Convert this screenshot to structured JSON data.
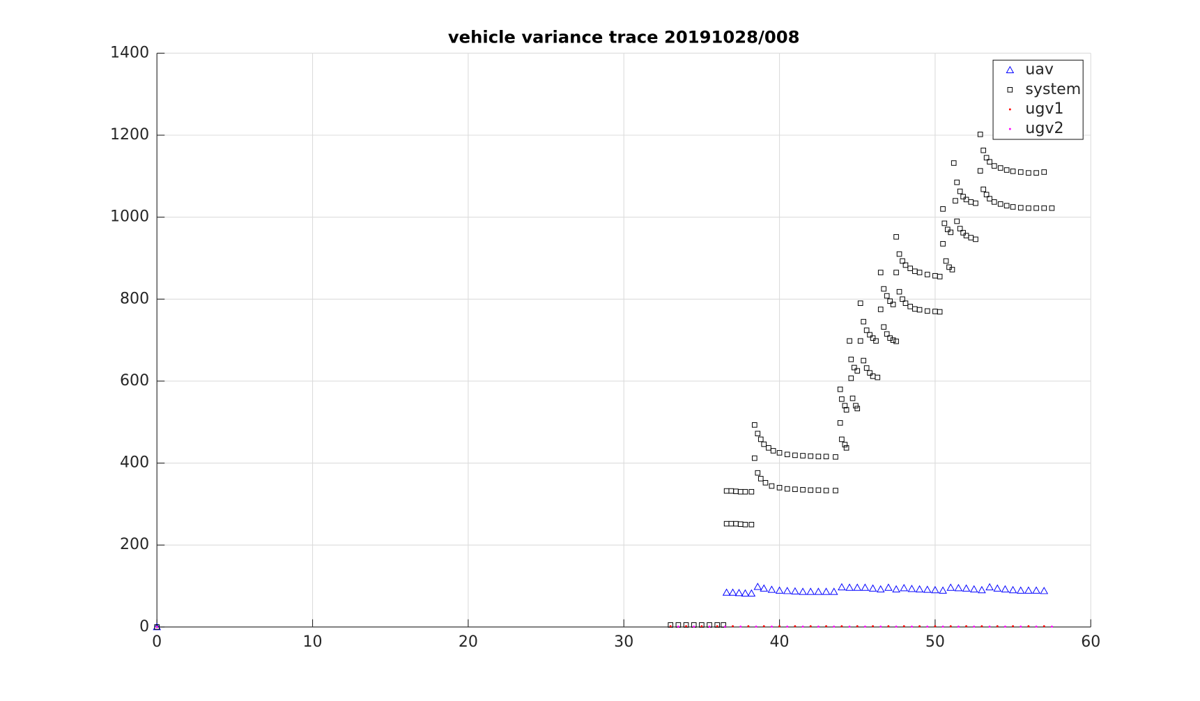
{
  "chart_data": {
    "type": "scatter",
    "title": "vehicle variance trace  20191028/008",
    "xlim": [
      0,
      60
    ],
    "xticks": [
      0,
      10,
      20,
      30,
      40,
      50,
      60
    ],
    "ylim": [
      0,
      1400
    ],
    "yticks": [
      0,
      200,
      400,
      600,
      800,
      1000,
      1200,
      1400
    ],
    "grid": true,
    "legend": "top-right",
    "series": [
      {
        "name": "uav",
        "color": "#0000ff",
        "marker": "triangle",
        "x": [
          0,
          36.6,
          37.0,
          37.4,
          37.8,
          38.2,
          38.6,
          39.0,
          39.5,
          40.0,
          40.5,
          41.0,
          41.5,
          42.0,
          42.5,
          43.0,
          43.5,
          44.0,
          44.5,
          45.0,
          45.5,
          46.0,
          46.5,
          47.0,
          47.5,
          48.0,
          48.5,
          49.0,
          49.5,
          50.0,
          50.5,
          51.0,
          51.5,
          52.0,
          52.5,
          53.0,
          53.5,
          54.0,
          54.5,
          55.0,
          55.5,
          56.0,
          56.5,
          57.0
        ],
        "values": [
          0,
          84,
          84,
          83,
          82,
          82,
          98,
          94,
          91,
          89,
          88,
          87,
          86,
          86,
          86,
          86,
          86,
          97,
          96,
          96,
          96,
          94,
          92,
          96,
          92,
          95,
          93,
          92,
          91,
          90,
          89,
          96,
          95,
          94,
          92,
          90,
          97,
          94,
          92,
          90,
          89,
          89,
          89,
          88
        ]
      },
      {
        "name": "system",
        "color": "#000000",
        "marker": "square",
        "x": [
          0,
          33.0,
          33.5,
          34.0,
          34.5,
          35.0,
          35.5,
          36.0,
          36.4,
          36.6,
          36.9,
          37.2,
          37.5,
          37.8,
          38.2,
          36.6,
          36.9,
          37.2,
          37.5,
          37.8,
          38.2,
          38.4,
          38.6,
          38.8,
          39.0,
          39.3,
          39.6,
          40.0,
          40.5,
          41.0,
          41.5,
          42.0,
          42.5,
          43.0,
          43.6,
          38.4,
          38.6,
          38.8,
          39.1,
          39.5,
          40.0,
          40.5,
          41.0,
          41.5,
          42.0,
          42.5,
          43.0,
          43.6,
          43.9,
          44.0,
          44.2,
          44.3,
          43.9,
          44.0,
          44.2,
          44.3,
          44.5,
          44.6,
          44.8,
          45.0,
          44.6,
          44.7,
          44.9,
          45.0,
          45.2,
          45.4,
          45.6,
          45.8,
          46.0,
          46.2,
          45.2,
          45.4,
          45.6,
          45.8,
          46.0,
          46.3,
          46.5,
          46.7,
          46.9,
          47.1,
          47.3,
          46.5,
          46.7,
          46.9,
          47.1,
          47.3,
          47.5,
          47.5,
          47.7,
          47.9,
          48.1,
          48.4,
          48.7,
          49.0,
          49.5,
          50.0,
          50.3,
          47.5,
          47.7,
          47.9,
          48.1,
          48.4,
          48.7,
          49.0,
          49.5,
          50.0,
          50.3,
          50.5,
          50.6,
          50.8,
          51.0,
          50.5,
          50.7,
          50.9,
          51.1,
          51.2,
          51.4,
          51.6,
          51.8,
          52.0,
          52.3,
          52.6,
          51.3,
          51.4,
          51.6,
          51.8,
          52.0,
          52.3,
          52.6,
          52.9,
          53.1,
          53.3,
          53.5,
          53.8,
          54.2,
          54.6,
          55.0,
          55.5,
          56.0,
          56.5,
          57.0,
          52.9,
          53.1,
          53.3,
          53.5,
          53.8,
          54.2,
          54.6,
          55.0,
          55.5,
          56.0,
          56.5,
          57.0,
          57.5
        ],
        "values": [
          0,
          5,
          5,
          5,
          5,
          5,
          5,
          5,
          5,
          252,
          252,
          252,
          251,
          250,
          250,
          332,
          332,
          331,
          330,
          330,
          330,
          493,
          472,
          458,
          446,
          437,
          430,
          425,
          421,
          419,
          418,
          417,
          416,
          416,
          415,
          412,
          376,
          362,
          352,
          344,
          340,
          337,
          336,
          335,
          334,
          334,
          333,
          333,
          580,
          556,
          540,
          530,
          498,
          458,
          445,
          437,
          698,
          653,
          633,
          625,
          607,
          558,
          540,
          533,
          790,
          745,
          724,
          713,
          705,
          698,
          698,
          650,
          632,
          620,
          612,
          609,
          865,
          825,
          808,
          795,
          787,
          775,
          732,
          715,
          705,
          700,
          697,
          952,
          910,
          893,
          883,
          875,
          868,
          865,
          860,
          857,
          855,
          865,
          818,
          800,
          790,
          782,
          776,
          774,
          771,
          770,
          769,
          1020,
          985,
          970,
          963,
          935,
          893,
          878,
          872,
          1132,
          1085,
          1063,
          1050,
          1043,
          1037,
          1034,
          1040,
          990,
          972,
          962,
          955,
          950,
          946,
          1202,
          1163,
          1145,
          1135,
          1125,
          1120,
          1115,
          1112,
          1110,
          1108,
          1108,
          1110,
          1113,
          1068,
          1055,
          1045,
          1037,
          1032,
          1028,
          1025,
          1023,
          1022,
          1022,
          1022,
          1022
        ]
      },
      {
        "name": "ugv1",
        "color": "#ff0000",
        "marker": "dot",
        "x": [
          0,
          33,
          34,
          35,
          36,
          37,
          38,
          39,
          40,
          41,
          42,
          43,
          44,
          45,
          46,
          47,
          48,
          49,
          50,
          51,
          52,
          53,
          54,
          55,
          56,
          57
        ],
        "values": [
          0,
          2,
          2,
          2,
          2,
          2,
          2,
          2,
          2,
          2,
          2,
          2,
          2,
          2,
          2,
          2,
          2,
          2,
          2,
          2,
          2,
          2,
          2,
          2,
          2,
          2
        ]
      },
      {
        "name": "ugv2",
        "color": "#ff00ff",
        "marker": "dot",
        "x": [
          0,
          33.5,
          34.5,
          35.5,
          36.5,
          37.5,
          38.5,
          39.5,
          40.5,
          41.5,
          42.5,
          43.5,
          44.5,
          45.5,
          46.5,
          47.5,
          48.5,
          49.5,
          50.5,
          51.5,
          52.5,
          53.5,
          54.5,
          55.5,
          56.5,
          57.5
        ],
        "values": [
          0,
          1,
          1,
          1,
          1,
          1,
          1,
          1,
          1,
          1,
          1,
          1,
          1,
          1,
          1,
          1,
          1,
          1,
          1,
          1,
          1,
          1,
          1,
          1,
          1,
          1
        ]
      }
    ]
  }
}
